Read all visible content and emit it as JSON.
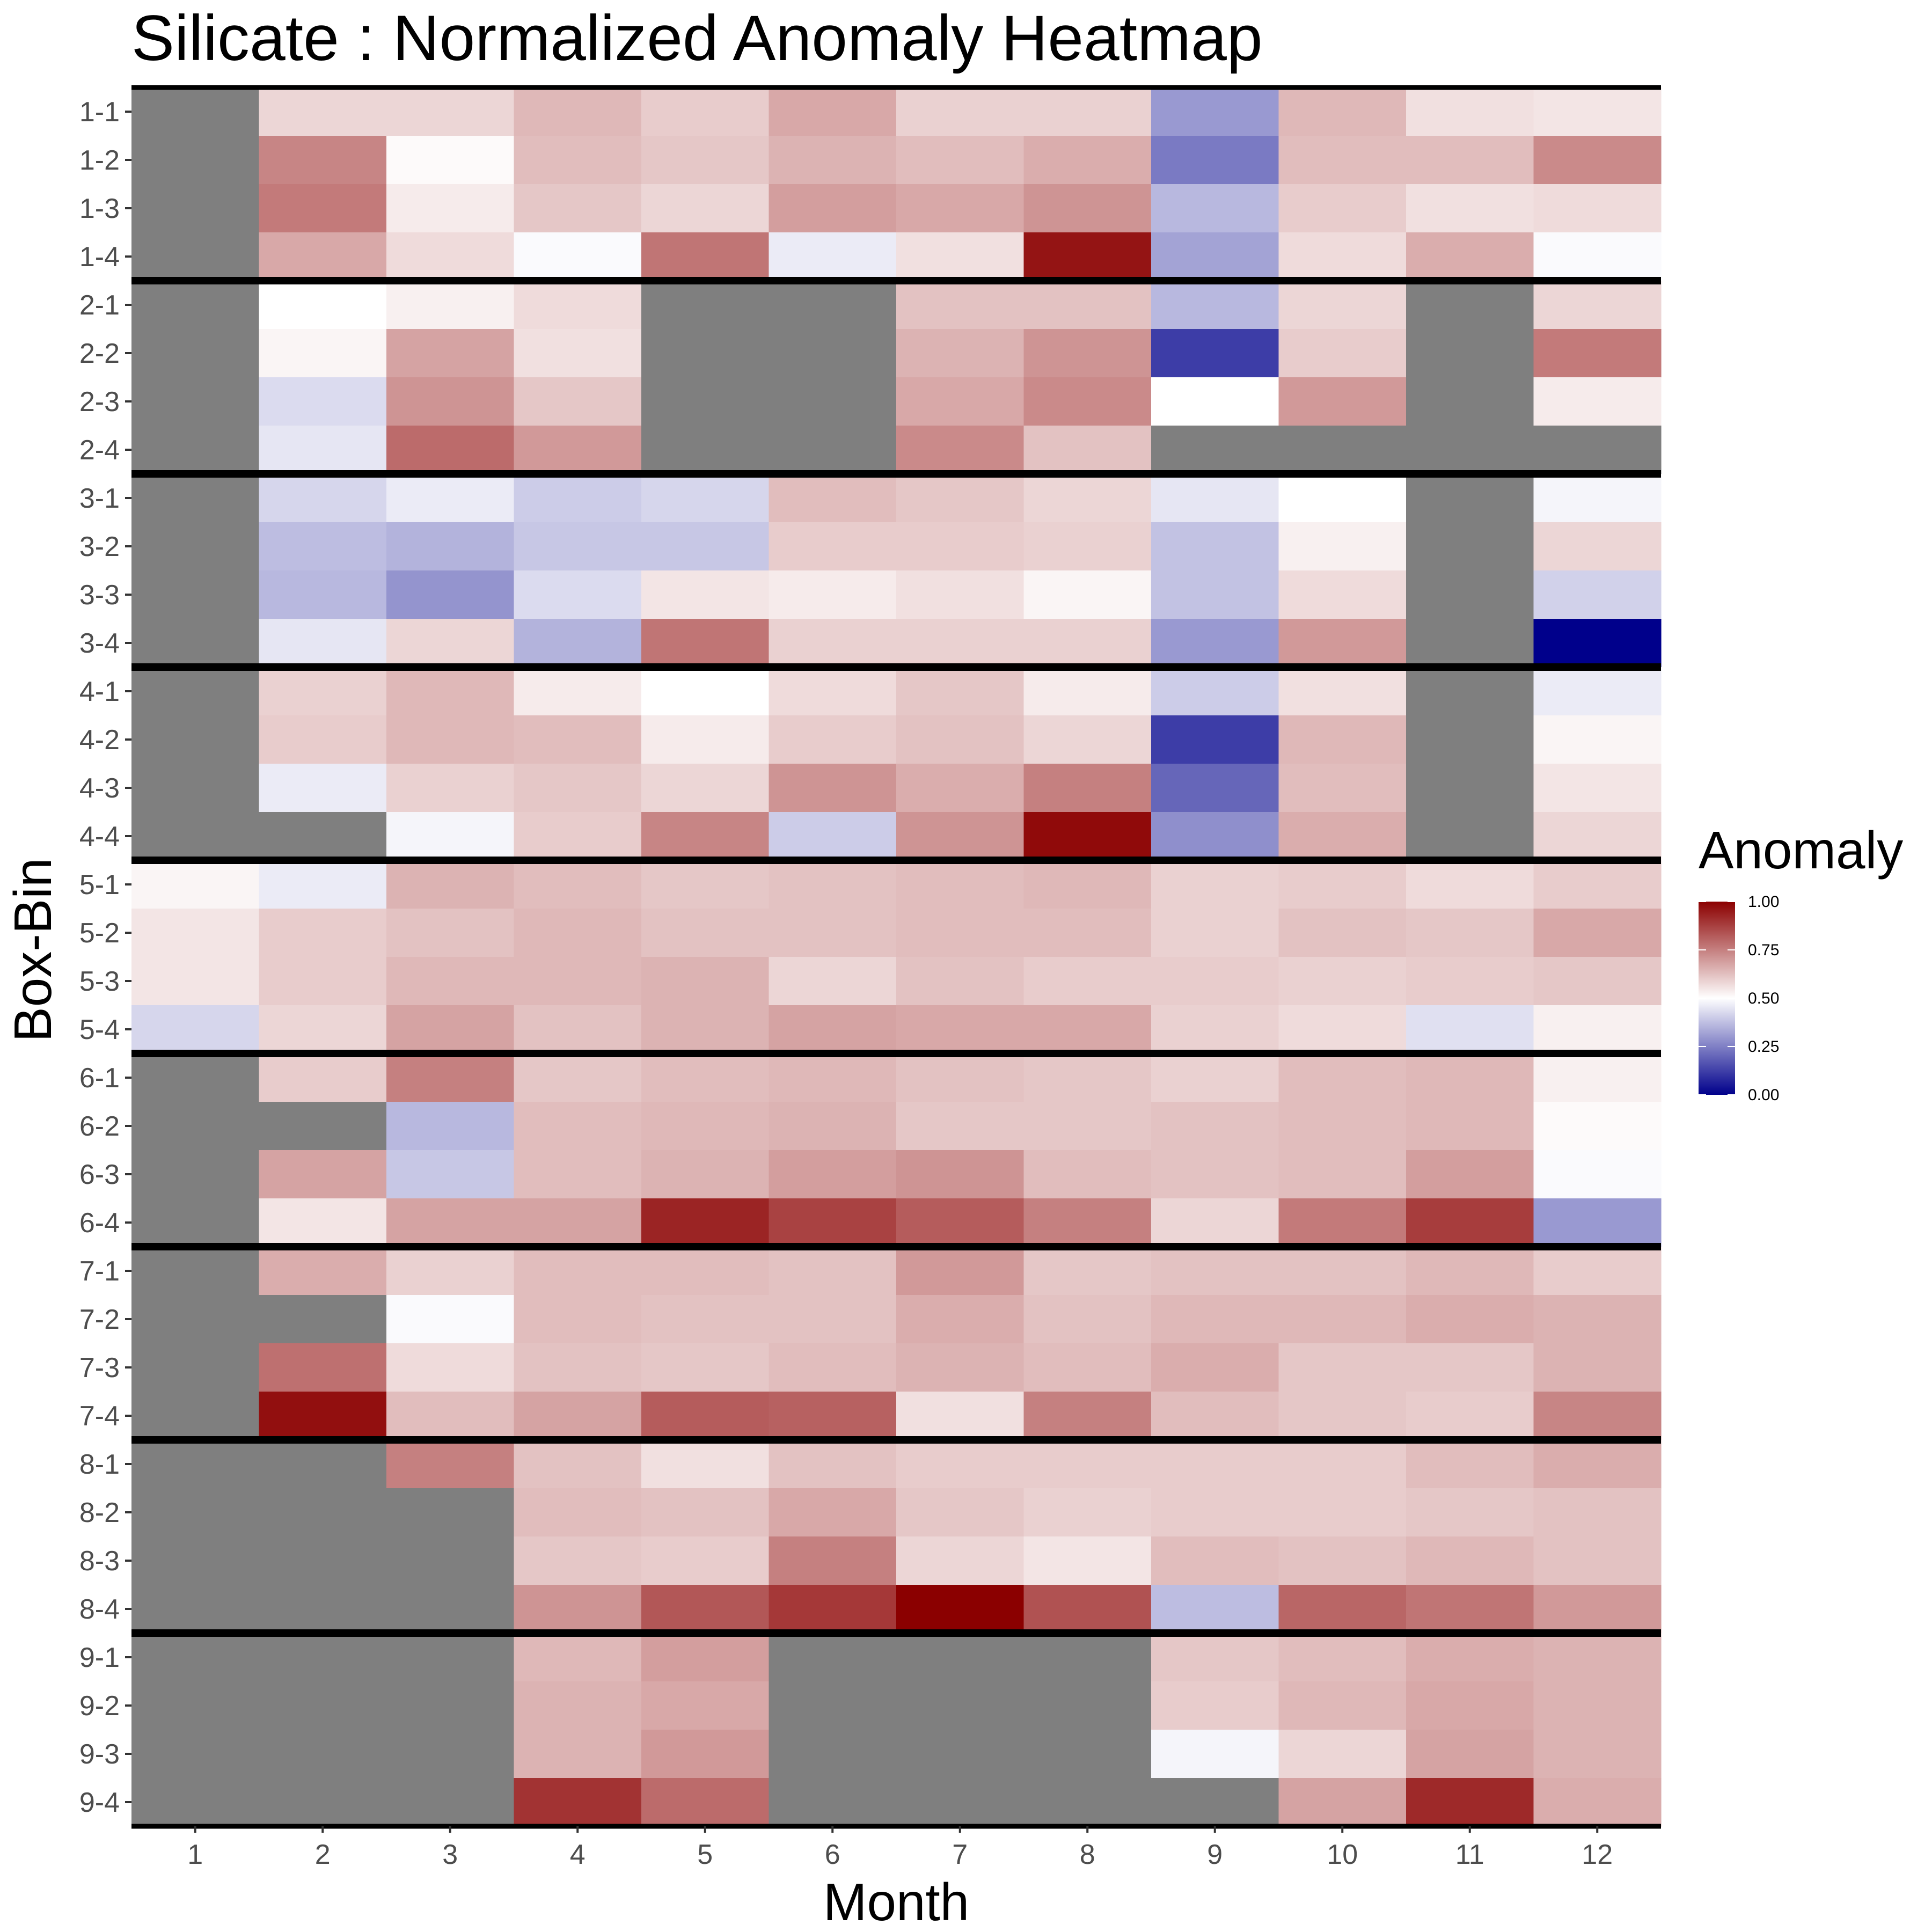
{
  "chart_data": {
    "type": "heatmap",
    "title": "Silicate : Normalized Anomaly Heatmap",
    "xlabel": "Month",
    "ylabel": "Box-Bin",
    "x_categories": [
      "1",
      "2",
      "3",
      "4",
      "5",
      "6",
      "7",
      "8",
      "9",
      "10",
      "11",
      "12"
    ],
    "y_categories": [
      "1-1",
      "1-2",
      "1-3",
      "1-4",
      "2-1",
      "2-2",
      "2-3",
      "2-4",
      "3-1",
      "3-2",
      "3-3",
      "3-4",
      "4-1",
      "4-2",
      "4-3",
      "4-4",
      "5-1",
      "5-2",
      "5-3",
      "5-4",
      "6-1",
      "6-2",
      "6-3",
      "6-4",
      "7-1",
      "7-2",
      "7-3",
      "7-4",
      "8-1",
      "8-2",
      "8-3",
      "8-4",
      "9-1",
      "9-2",
      "9-3",
      "9-4"
    ],
    "values": [
      [
        null,
        0.58,
        0.58,
        0.64,
        0.6,
        0.67,
        0.59,
        0.59,
        0.3,
        0.64,
        0.56,
        0.55
      ],
      [
        null,
        0.74,
        0.51,
        0.63,
        0.61,
        0.65,
        0.63,
        0.66,
        0.24,
        0.63,
        0.63,
        0.73
      ],
      [
        null,
        0.76,
        0.54,
        0.61,
        0.58,
        0.69,
        0.67,
        0.71,
        0.36,
        0.6,
        0.56,
        0.57
      ],
      [
        null,
        0.67,
        0.57,
        0.49,
        0.77,
        0.46,
        0.56,
        0.96,
        0.32,
        0.57,
        0.66,
        0.49
      ],
      [
        null,
        0.5,
        0.53,
        0.57,
        null,
        null,
        0.62,
        0.62,
        0.36,
        0.58,
        null,
        0.58
      ],
      [
        null,
        0.52,
        0.68,
        0.56,
        null,
        null,
        0.65,
        0.71,
        0.12,
        0.6,
        null,
        0.76
      ],
      [
        null,
        0.43,
        0.71,
        0.61,
        null,
        null,
        0.67,
        0.73,
        0.5,
        0.7,
        null,
        0.54
      ],
      [
        null,
        0.45,
        0.79,
        0.7,
        null,
        null,
        0.73,
        0.62,
        null,
        null,
        null,
        null
      ],
      [
        null,
        0.42,
        0.46,
        0.4,
        0.42,
        0.63,
        0.61,
        0.58,
        0.45,
        0.5,
        null,
        0.48
      ],
      [
        null,
        0.37,
        0.35,
        0.39,
        0.39,
        0.6,
        0.6,
        0.59,
        0.38,
        0.53,
        null,
        0.58
      ],
      [
        null,
        0.36,
        0.29,
        0.43,
        0.55,
        0.54,
        0.56,
        0.52,
        0.38,
        0.57,
        null,
        0.41
      ],
      [
        null,
        0.45,
        0.58,
        0.35,
        0.77,
        0.59,
        0.59,
        0.59,
        0.3,
        0.7,
        null,
        0.0
      ],
      [
        null,
        0.59,
        0.64,
        0.54,
        0.5,
        0.57,
        0.61,
        0.54,
        0.4,
        0.56,
        null,
        0.46
      ],
      [
        null,
        0.6,
        0.64,
        0.63,
        0.54,
        0.6,
        0.62,
        0.58,
        0.12,
        0.64,
        null,
        0.52
      ],
      [
        null,
        0.46,
        0.59,
        0.61,
        0.58,
        0.71,
        0.66,
        0.75,
        0.2,
        0.63,
        null,
        0.55
      ],
      [
        null,
        null,
        0.48,
        0.6,
        0.74,
        0.4,
        0.71,
        0.98,
        0.28,
        0.66,
        null,
        0.58
      ],
      [
        0.52,
        0.46,
        0.65,
        0.63,
        0.61,
        0.62,
        0.63,
        0.64,
        0.59,
        0.6,
        0.57,
        0.6
      ],
      [
        0.55,
        0.6,
        0.62,
        0.64,
        0.62,
        0.62,
        0.63,
        0.63,
        0.59,
        0.62,
        0.61,
        0.67
      ],
      [
        0.55,
        0.6,
        0.64,
        0.64,
        0.65,
        0.58,
        0.62,
        0.6,
        0.6,
        0.59,
        0.6,
        0.61
      ],
      [
        0.42,
        0.58,
        0.68,
        0.62,
        0.65,
        0.68,
        0.67,
        0.67,
        0.59,
        0.57,
        0.44,
        0.53
      ],
      [
        null,
        0.6,
        0.75,
        0.61,
        0.63,
        0.64,
        0.62,
        0.61,
        0.59,
        0.63,
        0.64,
        0.53
      ],
      [
        null,
        null,
        0.36,
        0.63,
        0.64,
        0.65,
        0.61,
        0.61,
        0.62,
        0.63,
        0.64,
        0.51
      ],
      [
        null,
        0.68,
        0.39,
        0.63,
        0.65,
        0.69,
        0.71,
        0.63,
        0.62,
        0.63,
        0.69,
        0.49
      ],
      [
        null,
        0.55,
        0.68,
        0.68,
        0.93,
        0.87,
        0.82,
        0.75,
        0.58,
        0.76,
        0.88,
        0.3
      ],
      [
        null,
        0.66,
        0.59,
        0.63,
        0.63,
        0.62,
        0.7,
        0.61,
        0.62,
        0.62,
        0.64,
        0.6
      ],
      [
        null,
        null,
        0.49,
        0.63,
        0.62,
        0.62,
        0.66,
        0.62,
        0.64,
        0.64,
        0.66,
        0.65
      ],
      [
        null,
        0.78,
        0.57,
        0.62,
        0.61,
        0.63,
        0.65,
        0.63,
        0.66,
        0.61,
        0.61,
        0.65
      ],
      [
        null,
        0.97,
        0.63,
        0.68,
        0.82,
        0.81,
        0.56,
        0.75,
        0.63,
        0.61,
        0.6,
        0.74
      ],
      [
        null,
        null,
        0.75,
        0.62,
        0.56,
        0.62,
        0.6,
        0.6,
        0.6,
        0.6,
        0.63,
        0.66
      ],
      [
        null,
        null,
        null,
        0.63,
        0.62,
        0.67,
        0.61,
        0.59,
        0.6,
        0.6,
        0.61,
        0.62
      ],
      [
        null,
        null,
        null,
        0.61,
        0.6,
        0.75,
        0.58,
        0.55,
        0.63,
        0.62,
        0.64,
        0.62
      ],
      [
        null,
        null,
        null,
        0.71,
        0.83,
        0.89,
        1.0,
        0.84,
        0.37,
        0.8,
        0.77,
        0.7
      ],
      [
        null,
        null,
        null,
        0.64,
        0.69,
        null,
        null,
        null,
        0.61,
        0.63,
        0.66,
        0.65
      ],
      [
        null,
        null,
        null,
        0.65,
        0.67,
        null,
        null,
        null,
        0.6,
        0.64,
        0.67,
        0.65
      ],
      [
        null,
        null,
        null,
        0.65,
        0.7,
        null,
        null,
        null,
        0.48,
        0.58,
        0.68,
        0.65
      ],
      [
        null,
        null,
        null,
        0.9,
        0.79,
        null,
        null,
        null,
        null,
        0.68,
        0.92,
        0.66
      ]
    ],
    "missing_color": "#7f7f7f",
    "color_scale": {
      "low": "#00008B",
      "mid": "#ffffff",
      "high": "#8B0000",
      "domain": [
        0,
        1
      ],
      "midpoint": 0.5
    },
    "legend": {
      "title": "Anomaly",
      "ticks": [
        "1.00",
        "0.75",
        "0.50",
        "0.25",
        "0.00"
      ],
      "tick_values": [
        1.0,
        0.75,
        0.5,
        0.25,
        0.0
      ],
      "position": "right"
    },
    "group_separators": "between boxes (every 4 bins)",
    "grid": false
  }
}
